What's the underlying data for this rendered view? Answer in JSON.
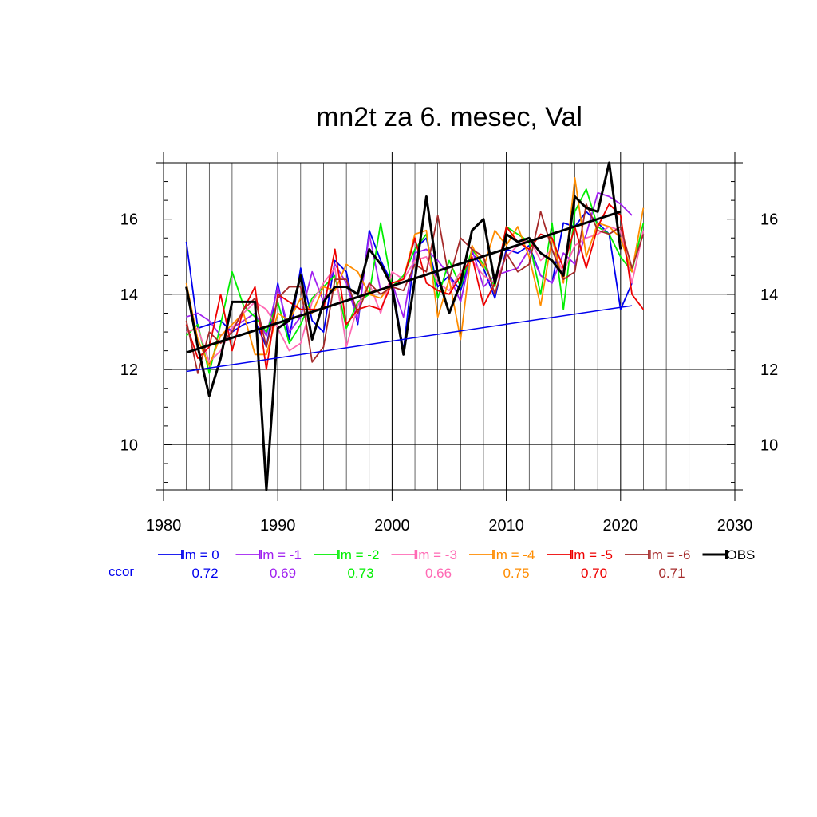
{
  "chart_data": {
    "type": "line",
    "title": "mn2t za 6. mesec, Val",
    "xlim": [
      1980,
      2030
    ],
    "ylim": [
      8.8,
      17.5
    ],
    "x_ticks": [
      1980,
      1990,
      2000,
      2010,
      2020,
      2030
    ],
    "y_ticks": [
      10,
      12,
      14,
      16
    ],
    "grid": true,
    "legend_position": "bottom",
    "ccor_label": "ccor",
    "x": [
      1982,
      1983,
      1984,
      1985,
      1986,
      1987,
      1988,
      1989,
      1990,
      1991,
      1992,
      1993,
      1994,
      1995,
      1996,
      1997,
      1998,
      1999,
      2000,
      2001,
      2002,
      2003,
      2004,
      2005,
      2006,
      2007,
      2008,
      2009,
      2010,
      2011,
      2012,
      2013,
      2014,
      2015,
      2016,
      2017,
      2018,
      2019,
      2020,
      2021,
      2022
    ],
    "series": [
      {
        "name": "lm = 0",
        "ccor": "0.72",
        "color": "#0000ee",
        "width": 1.8,
        "values": [
          15.4,
          13.1,
          13.2,
          13.3,
          13.0,
          13.2,
          13.3,
          12.6,
          14.3,
          12.8,
          14.7,
          13.3,
          13.0,
          14.9,
          14.6,
          13.2,
          15.7,
          14.9,
          14.3,
          12.5,
          15.2,
          15.5,
          14.2,
          14.5,
          14.1,
          15.1,
          14.7,
          13.9,
          15.2,
          15.1,
          15.3,
          14.5,
          14.3,
          15.9,
          15.8,
          16.2,
          15.9,
          15.6,
          13.6,
          14.3,
          null
        ]
      },
      {
        "name": "lm = -1",
        "ccor": "0.69",
        "color": "#a020f0",
        "width": 1.8,
        "values": [
          13.4,
          13.5,
          13.3,
          12.9,
          13.1,
          13.3,
          13.5,
          12.9,
          14.2,
          13.0,
          13.4,
          14.6,
          13.8,
          14.8,
          14.3,
          13.3,
          15.6,
          14.1,
          14.3,
          13.4,
          15.1,
          15.2,
          14.9,
          14.5,
          13.8,
          15.2,
          14.2,
          14.5,
          14.6,
          14.7,
          15.2,
          14.5,
          14.3,
          15.1,
          14.8,
          15.6,
          16.7,
          16.6,
          16.4,
          16.1,
          null
        ]
      },
      {
        "name": "lm = -2",
        "ccor": "0.73",
        "color": "#00ee00",
        "width": 1.8,
        "values": [
          12.9,
          13.2,
          11.9,
          13.2,
          14.6,
          13.7,
          13.4,
          13.0,
          13.8,
          12.7,
          13.2,
          13.9,
          14.2,
          14.5,
          13.1,
          13.8,
          14.0,
          15.9,
          14.2,
          14.5,
          15.2,
          15.6,
          13.9,
          14.9,
          14.2,
          15.2,
          14.8,
          14.2,
          15.8,
          15.6,
          15.4,
          14.0,
          15.9,
          13.6,
          16.2,
          16.8,
          15.8,
          15.6,
          15.0,
          14.6,
          15.9
        ]
      },
      {
        "name": "lm = -3",
        "ccor": "0.66",
        "color": "#ff69b4",
        "width": 1.8,
        "values": [
          13.0,
          13.1,
          12.2,
          12.5,
          13.1,
          13.5,
          13.8,
          13.6,
          13.1,
          12.5,
          12.7,
          13.8,
          14.3,
          14.7,
          12.6,
          13.7,
          14.3,
          13.5,
          14.6,
          14.4,
          14.9,
          15.0,
          14.3,
          14.1,
          14.6,
          14.9,
          14.5,
          14.3,
          15.0,
          15.3,
          15.5,
          14.9,
          15.2,
          14.6,
          15.3,
          15.5,
          15.6,
          15.8,
          15.7,
          14.3,
          15.7
        ]
      },
      {
        "name": "lm = -4",
        "ccor": "0.75",
        "color": "#ff8c00",
        "width": 1.8,
        "values": [
          14.3,
          12.8,
          12.1,
          12.9,
          13.2,
          13.5,
          12.4,
          12.4,
          13.5,
          13.3,
          13.9,
          13.5,
          14.2,
          14.1,
          14.8,
          14.6,
          14.0,
          13.9,
          14.3,
          14.4,
          15.6,
          15.7,
          13.4,
          14.4,
          12.8,
          15.3,
          14.7,
          15.7,
          15.3,
          15.8,
          15.0,
          13.7,
          15.5,
          14.3,
          17.1,
          15.0,
          15.9,
          15.8,
          15.5,
          14.6,
          16.3
        ]
      },
      {
        "name": "lm = -5",
        "ccor": "0.70",
        "color": "#ee0000",
        "width": 1.8,
        "values": [
          13.2,
          12.3,
          12.6,
          14.0,
          12.5,
          13.6,
          14.2,
          12.0,
          14.0,
          13.8,
          13.6,
          13.6,
          13.6,
          15.2,
          13.2,
          13.6,
          13.7,
          13.6,
          14.3,
          14.4,
          15.5,
          14.3,
          14.1,
          14.0,
          14.5,
          15.0,
          13.7,
          14.3,
          15.8,
          15.4,
          15.2,
          15.6,
          15.5,
          14.7,
          15.8,
          14.7,
          15.8,
          16.4,
          16.1,
          14.0,
          13.6
        ]
      },
      {
        "name": "lm = -6",
        "ccor": "0.71",
        "color": "#a52a2a",
        "width": 1.8,
        "values": [
          13.3,
          11.9,
          13.0,
          12.7,
          13.0,
          13.6,
          13.9,
          12.6,
          13.9,
          14.2,
          14.2,
          12.2,
          12.6,
          14.4,
          14.4,
          13.5,
          14.3,
          14.0,
          14.2,
          14.1,
          14.8,
          14.6,
          16.1,
          14.4,
          15.5,
          15.2,
          15.0,
          14.0,
          15.1,
          14.6,
          14.8,
          16.2,
          15.2,
          14.4,
          14.6,
          16.4,
          15.7,
          15.6,
          15.8,
          14.7,
          15.6
        ]
      },
      {
        "name": "OBS",
        "ccor": "",
        "color": "#000000",
        "width": 3,
        "values": [
          14.2,
          12.6,
          11.3,
          12.3,
          13.8,
          13.8,
          13.8,
          8.8,
          13.1,
          13.3,
          14.5,
          12.8,
          13.8,
          14.2,
          14.2,
          14.0,
          15.2,
          14.8,
          14.2,
          12.4,
          14.4,
          16.6,
          14.5,
          13.5,
          14.3,
          15.7,
          16.0,
          14.3,
          15.6,
          15.4,
          15.5,
          15.1,
          14.9,
          14.5,
          16.6,
          16.3,
          16.2,
          17.5,
          15.2,
          null,
          null
        ]
      }
    ],
    "trend_lines": [
      {
        "color": "#0000ee",
        "width": 1.5,
        "x": [
          1982,
          2021
        ],
        "y": [
          11.95,
          13.7
        ]
      },
      {
        "color": "#000000",
        "width": 3,
        "x": [
          1982,
          2020
        ],
        "y": [
          12.45,
          16.2
        ]
      }
    ]
  }
}
